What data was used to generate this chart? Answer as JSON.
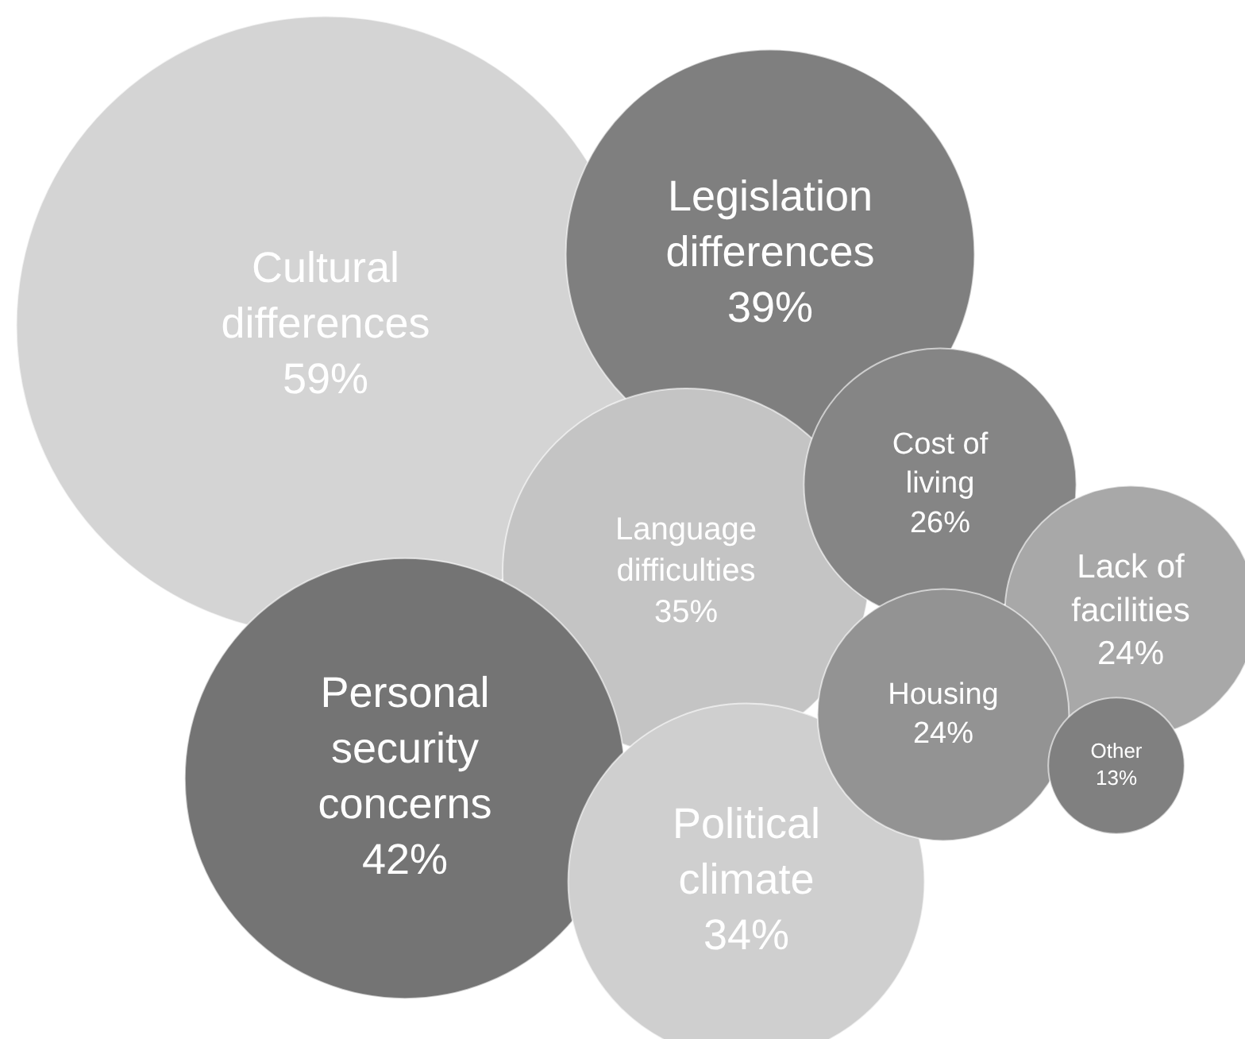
{
  "chart_data": {
    "type": "other",
    "categories": [
      "Cultural differences",
      "Legislation differences",
      "Language difficulties",
      "Cost of living",
      "Lack of facilities",
      "Personal security concerns",
      "Political climate",
      "Housing",
      "Other"
    ],
    "values": [
      59,
      39,
      35,
      26,
      24,
      42,
      34,
      24,
      13
    ],
    "value_labels": [
      "59%",
      "39%",
      "35%",
      "26%",
      "24%",
      "42%",
      "34%",
      "24%",
      "13%"
    ],
    "colors": [
      "#d4d4d4",
      "#7f7f7f",
      "#c4c4c4",
      "#858585",
      "#a8a8a8",
      "#747474",
      "#cfcfcf",
      "#939393",
      "#808080"
    ]
  }
}
